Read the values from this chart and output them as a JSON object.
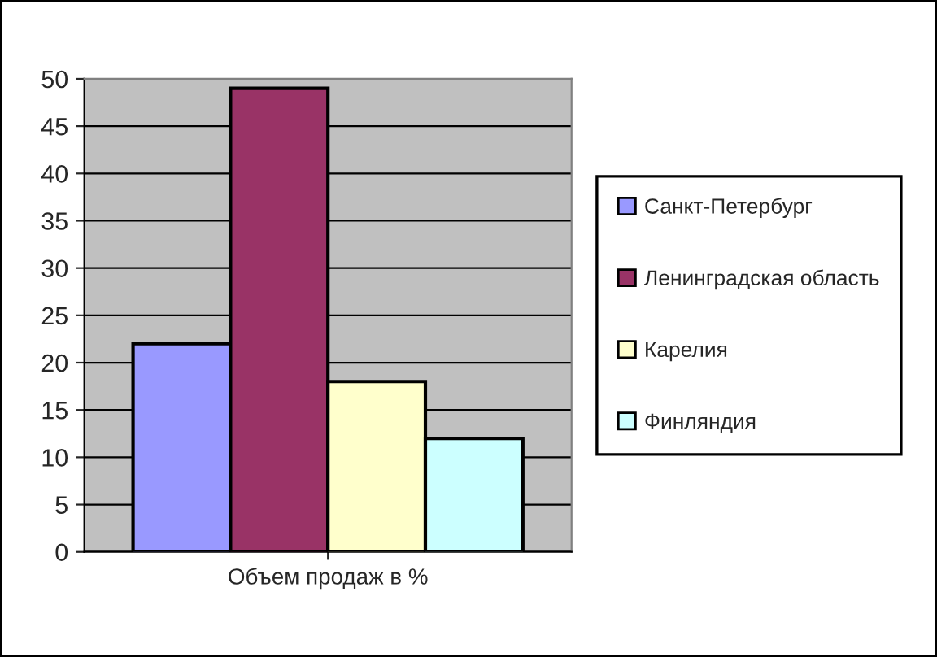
{
  "chart_data": {
    "type": "bar",
    "categories": [
      "Объем продаж в %"
    ],
    "series": [
      {
        "name": "Санкт-Петербург",
        "color": "#9999ff",
        "values": [
          22
        ]
      },
      {
        "name": "Ленинградская область",
        "color": "#993366",
        "values": [
          49
        ]
      },
      {
        "name": "Карелия",
        "color": "#ffffcc",
        "values": [
          18
        ]
      },
      {
        "name": "Финляндия",
        "color": "#ccffff",
        "values": [
          12
        ]
      }
    ],
    "ylim": [
      0,
      50
    ],
    "yticks": [
      0,
      5,
      10,
      15,
      20,
      25,
      30,
      35,
      40,
      45,
      50
    ],
    "grid": "y",
    "legend": "right"
  }
}
